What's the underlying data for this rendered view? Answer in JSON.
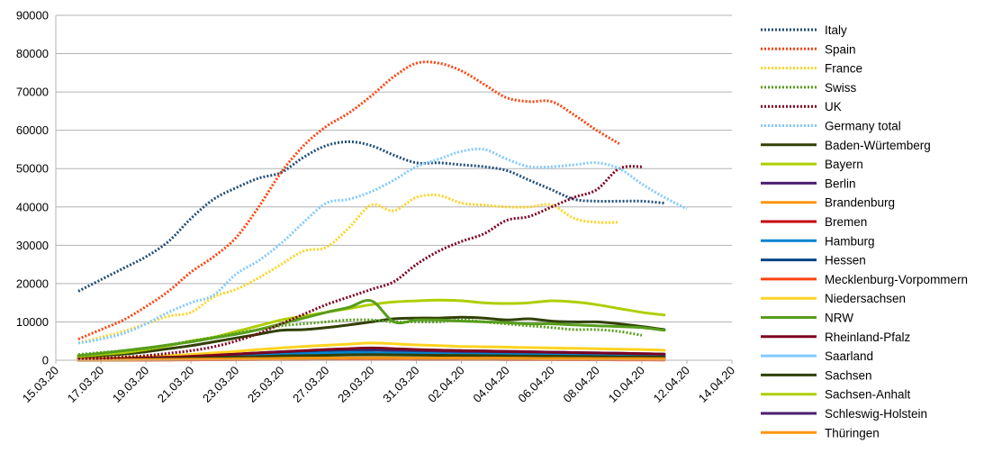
{
  "chart_data": {
    "type": "line",
    "title": "",
    "xlabel": "",
    "ylabel": "",
    "ylim": [
      0,
      90000
    ],
    "yticks": [
      0,
      10000,
      20000,
      30000,
      40000,
      50000,
      60000,
      70000,
      80000,
      90000
    ],
    "grid": "horizontal",
    "legend_position": "right",
    "x_start_date": "2020-03-15",
    "x_ticks": [
      "15.03.20",
      "17.03.20",
      "19.03.20",
      "21.03.20",
      "23.03.20",
      "25.03.20",
      "27.03.20",
      "29.03.20",
      "31.03.20",
      "02.04.20",
      "04.04.20",
      "06.04.20",
      "08.04.20",
      "10.04.20",
      "12.04.20",
      "14.04.20"
    ],
    "series": [
      {
        "name": "Italy",
        "style": "dotted",
        "color": "#1f4e79",
        "values": [
          18000,
          21000,
          24000,
          27000,
          31000,
          37000,
          42000,
          45000,
          47500,
          49000,
          53000,
          56000,
          57000,
          56000,
          53500,
          51500,
          51500,
          51000,
          50500,
          49500,
          47000,
          44500,
          42000,
          41500,
          41500,
          41500,
          41000
        ]
      },
      {
        "name": "Spain",
        "style": "dotted",
        "color": "#ff420e",
        "values": [
          5500,
          8000,
          10500,
          14000,
          18000,
          23000,
          27000,
          32000,
          40000,
          49000,
          56000,
          61000,
          64500,
          69000,
          74000,
          77500,
          77500,
          75500,
          72000,
          68500,
          67500,
          67500,
          64000,
          60000,
          56500
        ]
      },
      {
        "name": "France",
        "style": "dotted",
        "color": "#ffd320",
        "values": [
          4500,
          6000,
          7500,
          9500,
          11500,
          12500,
          16500,
          18500,
          21500,
          25000,
          28500,
          29500,
          34500,
          40500,
          39000,
          42500,
          43000,
          41000,
          40500,
          40000,
          40000,
          40500,
          37000,
          36000,
          36000
        ]
      },
      {
        "name": "Swiss",
        "style": "dotted",
        "color": "#579d1c",
        "values": [
          1500,
          2000,
          2500,
          3000,
          4000,
          5000,
          6000,
          7000,
          8000,
          9000,
          9500,
          10000,
          10500,
          10500,
          10000,
          10000,
          10000,
          10500,
          10000,
          9500,
          9000,
          8500,
          8000,
          8000,
          7500,
          6500
        ]
      },
      {
        "name": "UK",
        "style": "dotted",
        "color": "#7e0021",
        "values": [
          300,
          500,
          800,
          1200,
          1800,
          2500,
          3500,
          5000,
          7000,
          9500,
          12000,
          14500,
          16500,
          18500,
          20500,
          25000,
          28500,
          31000,
          33000,
          36500,
          37500,
          40000,
          42500,
          44500,
          50000,
          50500
        ]
      },
      {
        "name": "Germany total",
        "style": "dotted",
        "color": "#83caff",
        "values": [
          4500,
          5500,
          7000,
          9500,
          12500,
          15000,
          17000,
          22500,
          26000,
          30500,
          36000,
          41000,
          42000,
          44000,
          47000,
          50500,
          52500,
          54500,
          55000,
          52500,
          50500,
          50500,
          51000,
          51500,
          50000,
          46000,
          42500,
          39500
        ]
      },
      {
        "name": "Baden-Würtemberg",
        "style": "solid",
        "color": "#314004",
        "values": [
          800,
          1200,
          1600,
          2200,
          3000,
          3800,
          4800,
          5800,
          6800,
          7800,
          8000,
          8500,
          9200,
          10000,
          10800,
          11000,
          11000,
          11200,
          11000,
          10500,
          10800,
          10200,
          10000,
          10000,
          9500,
          8800,
          8000
        ]
      },
      {
        "name": "Bayern",
        "style": "solid",
        "color": "#aecf00",
        "values": [
          1000,
          1500,
          2000,
          2800,
          3800,
          5000,
          6000,
          7500,
          9000,
          10500,
          11500,
          12500,
          13500,
          14500,
          15200,
          15500,
          15700,
          15500,
          15000,
          14800,
          15000,
          15500,
          15200,
          14500,
          13500,
          12500,
          11800
        ]
      },
      {
        "name": "Berlin",
        "style": "solid",
        "color": "#4b1f6f",
        "values": [
          200,
          300,
          400,
          500,
          700,
          900,
          1100,
          1400,
          1700,
          2000,
          2200,
          2400,
          2600,
          2700,
          2500,
          2300,
          2200,
          2100,
          2000,
          1900,
          1800,
          1700,
          1600,
          1500,
          1400,
          1300,
          1200
        ]
      },
      {
        "name": "Brandenburg",
        "style": "solid",
        "color": "#ff950e",
        "values": [
          50,
          80,
          120,
          180,
          250,
          350,
          450,
          550,
          650,
          750,
          800,
          850,
          900,
          900,
          850,
          800,
          750,
          700,
          700,
          650,
          600,
          600,
          550,
          550,
          500,
          500,
          450
        ]
      },
      {
        "name": "Bremen",
        "style": "solid",
        "color": "#c5000b",
        "values": [
          30,
          40,
          60,
          80,
          100,
          130,
          160,
          190,
          220,
          250,
          260,
          270,
          280,
          280,
          270,
          260,
          250,
          240,
          230,
          220,
          210,
          200,
          190,
          180,
          170,
          160,
          150
        ]
      },
      {
        "name": "Hamburg",
        "style": "solid",
        "color": "#0084d1",
        "values": [
          150,
          250,
          350,
          500,
          700,
          900,
          1100,
          1300,
          1500,
          1700,
          1800,
          1900,
          2000,
          2000,
          1900,
          1800,
          1700,
          1600,
          1550,
          1500,
          1450,
          1400,
          1350,
          1300,
          1250,
          1200,
          1150
        ]
      },
      {
        "name": "Hessen",
        "style": "solid",
        "color": "#004586",
        "values": [
          200,
          300,
          450,
          600,
          800,
          1000,
          1300,
          1600,
          1900,
          2200,
          2400,
          2600,
          2800,
          3000,
          2900,
          2700,
          2600,
          2500,
          2400,
          2300,
          2200,
          2100,
          2000,
          1900,
          1800,
          1700,
          1600
        ]
      },
      {
        "name": "Mecklenburg-Vorpommern",
        "style": "solid",
        "color": "#ff420e",
        "values": [
          20,
          30,
          40,
          60,
          80,
          100,
          120,
          140,
          160,
          180,
          190,
          200,
          210,
          210,
          200,
          190,
          180,
          170,
          160,
          150,
          140,
          130,
          120,
          110,
          100,
          90,
          80
        ]
      },
      {
        "name": "Niedersachsen",
        "style": "solid",
        "color": "#ffd320",
        "values": [
          300,
          500,
          700,
          900,
          1200,
          1500,
          1900,
          2300,
          2800,
          3200,
          3600,
          3900,
          4200,
          4500,
          4300,
          4000,
          3800,
          3600,
          3500,
          3400,
          3300,
          3200,
          3100,
          3000,
          2900,
          2800,
          2600
        ]
      },
      {
        "name": "NRW",
        "style": "solid",
        "color": "#579d1c",
        "values": [
          1200,
          1800,
          2500,
          3200,
          4000,
          4800,
          5800,
          6800,
          8000,
          9500,
          11000,
          12500,
          13800,
          15500,
          10000,
          10500,
          10500,
          10200,
          10000,
          9800,
          9500,
          9500,
          9200,
          9000,
          8800,
          8500,
          7800
        ]
      },
      {
        "name": "Rheinland-Pfalz",
        "style": "solid",
        "color": "#7e0021",
        "values": [
          200,
          300,
          450,
          600,
          800,
          1000,
          1300,
          1600,
          1900,
          2200,
          2500,
          2800,
          3000,
          3200,
          3000,
          2800,
          2600,
          2500,
          2400,
          2300,
          2200,
          2100,
          2000,
          1900,
          1800,
          1700,
          1600
        ]
      },
      {
        "name": "Saarland",
        "style": "solid",
        "color": "#83caff",
        "values": [
          50,
          80,
          120,
          180,
          250,
          330,
          420,
          500,
          580,
          650,
          700,
          750,
          780,
          800,
          780,
          750,
          720,
          700,
          680,
          660,
          640,
          620,
          600,
          580,
          560,
          540,
          520
        ]
      },
      {
        "name": "Sachsen",
        "style": "solid",
        "color": "#314004",
        "values": [
          100,
          150,
          220,
          300,
          400,
          520,
          650,
          800,
          950,
          1100,
          1200,
          1300,
          1400,
          1450,
          1400,
          1350,
          1300,
          1250,
          1200,
          1150,
          1100,
          1050,
          1000,
          950,
          900,
          850,
          800
        ]
      },
      {
        "name": "Sachsen-Anhalt",
        "style": "solid",
        "color": "#aecf00",
        "values": [
          50,
          70,
          100,
          140,
          190,
          250,
          310,
          370,
          430,
          490,
          530,
          560,
          590,
          610,
          600,
          580,
          560,
          540,
          520,
          500,
          480,
          460,
          440,
          420,
          400,
          380,
          360
        ]
      },
      {
        "name": "Schleswig-Holstein",
        "style": "solid",
        "color": "#4b1f6f",
        "values": [
          40,
          60,
          90,
          130,
          180,
          240,
          300,
          360,
          420,
          480,
          520,
          550,
          580,
          600,
          590,
          570,
          550,
          530,
          510,
          490,
          470,
          450,
          430,
          410,
          390,
          370,
          350
        ]
      },
      {
        "name": "Thüringen",
        "style": "solid",
        "color": "#ff950e",
        "values": [
          40,
          60,
          90,
          130,
          180,
          240,
          300,
          360,
          420,
          480,
          520,
          560,
          600,
          620,
          610,
          590,
          570,
          550,
          530,
          510,
          490,
          470,
          450,
          430,
          410,
          390,
          370
        ]
      }
    ]
  }
}
